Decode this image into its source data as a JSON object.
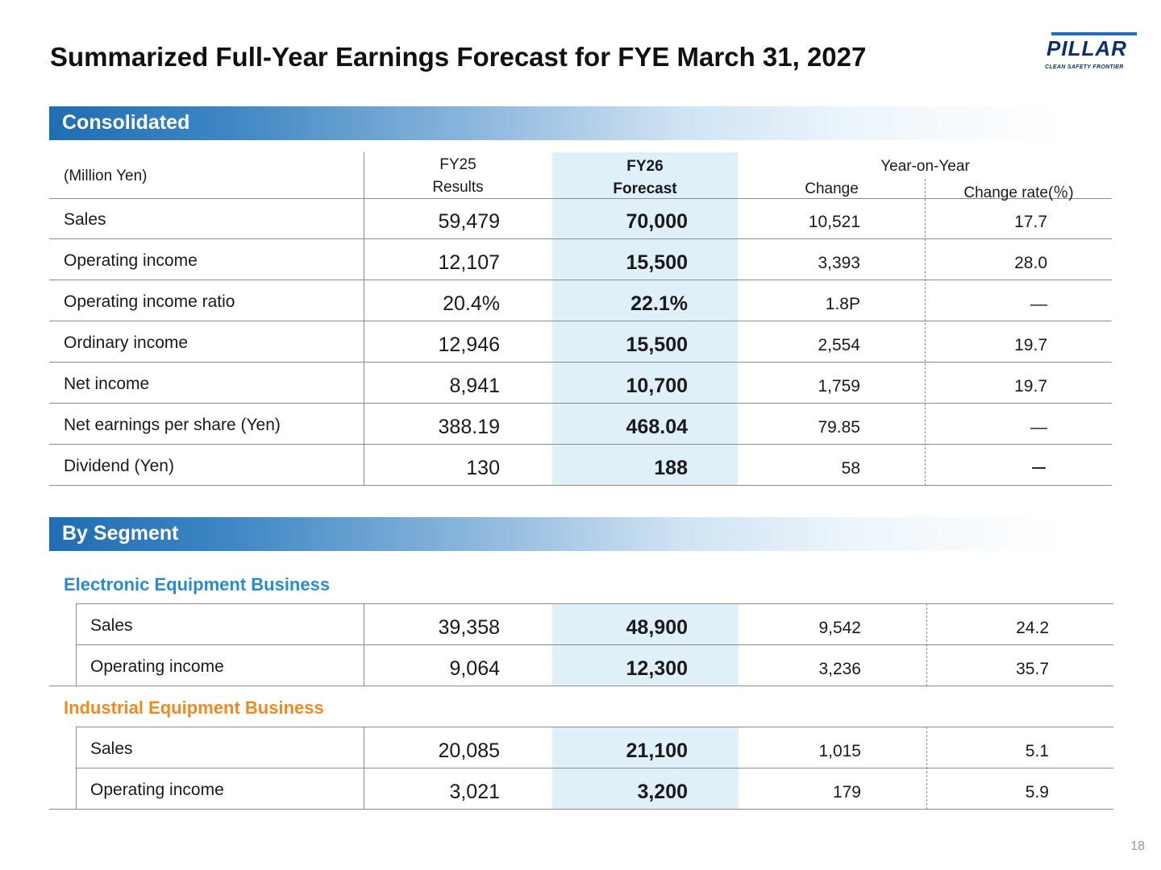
{
  "title": "Summarized Full-Year Earnings Forecast for FYE March 31, 2027",
  "logo": {
    "word": "PILLAR",
    "tagline": "CLEAN SAFETY FRONTIER"
  },
  "consolidated": {
    "section_label": "Consolidated",
    "unit_label": "(Million Yen)",
    "headers": {
      "fy25_line1": "FY25",
      "fy25_line2": "Results",
      "fy26_line1": "FY26",
      "fy26_line2": "Forecast",
      "yoy": "Year-on-Year",
      "change": "Change",
      "change_rate": "Change rate(％)"
    },
    "rows": [
      {
        "label": "Sales",
        "fy25": "59,479",
        "fy26": "70,000",
        "change": "10,521",
        "rate": "17.7"
      },
      {
        "label": "Operating income",
        "fy25": "12,107",
        "fy26": "15,500",
        "change": "3,393",
        "rate": "28.0"
      },
      {
        "label": "Operating income ratio",
        "fy25": "20.4%",
        "fy26": "22.1%",
        "change": "1.8P",
        "rate": "—"
      },
      {
        "label": "Ordinary income",
        "fy25": "12,946",
        "fy26": "15,500",
        "change": "2,554",
        "rate": "19.7"
      },
      {
        "label": "Net income",
        "fy25": "8,941",
        "fy26": "10,700",
        "change": "1,759",
        "rate": "19.7"
      },
      {
        "label": "Net earnings per share (Yen)",
        "fy25": "388.19",
        "fy26": "468.04",
        "change": "79.85",
        "rate": "—"
      },
      {
        "label": "Dividend (Yen)",
        "fy25": "130",
        "fy26": "188",
        "change": "58",
        "rate": "ー"
      }
    ]
  },
  "by_segment": {
    "section_label": "By Segment",
    "electronic": {
      "title": "Electronic Equipment Business",
      "rows": [
        {
          "label": "Sales",
          "fy25": "39,358",
          "fy26": "48,900",
          "change": "9,542",
          "rate": "24.2"
        },
        {
          "label": "Operating income",
          "fy25": "9,064",
          "fy26": "12,300",
          "change": "3,236",
          "rate": "35.7"
        }
      ]
    },
    "industrial": {
      "title": "Industrial Equipment Business",
      "rows": [
        {
          "label": "Sales",
          "fy25": "20,085",
          "fy26": "21,100",
          "change": "1,015",
          "rate": "5.1"
        },
        {
          "label": "Operating income",
          "fy25": "3,021",
          "fy26": "3,200",
          "change": "179",
          "rate": "5.9"
        }
      ]
    }
  },
  "page_number": "18"
}
